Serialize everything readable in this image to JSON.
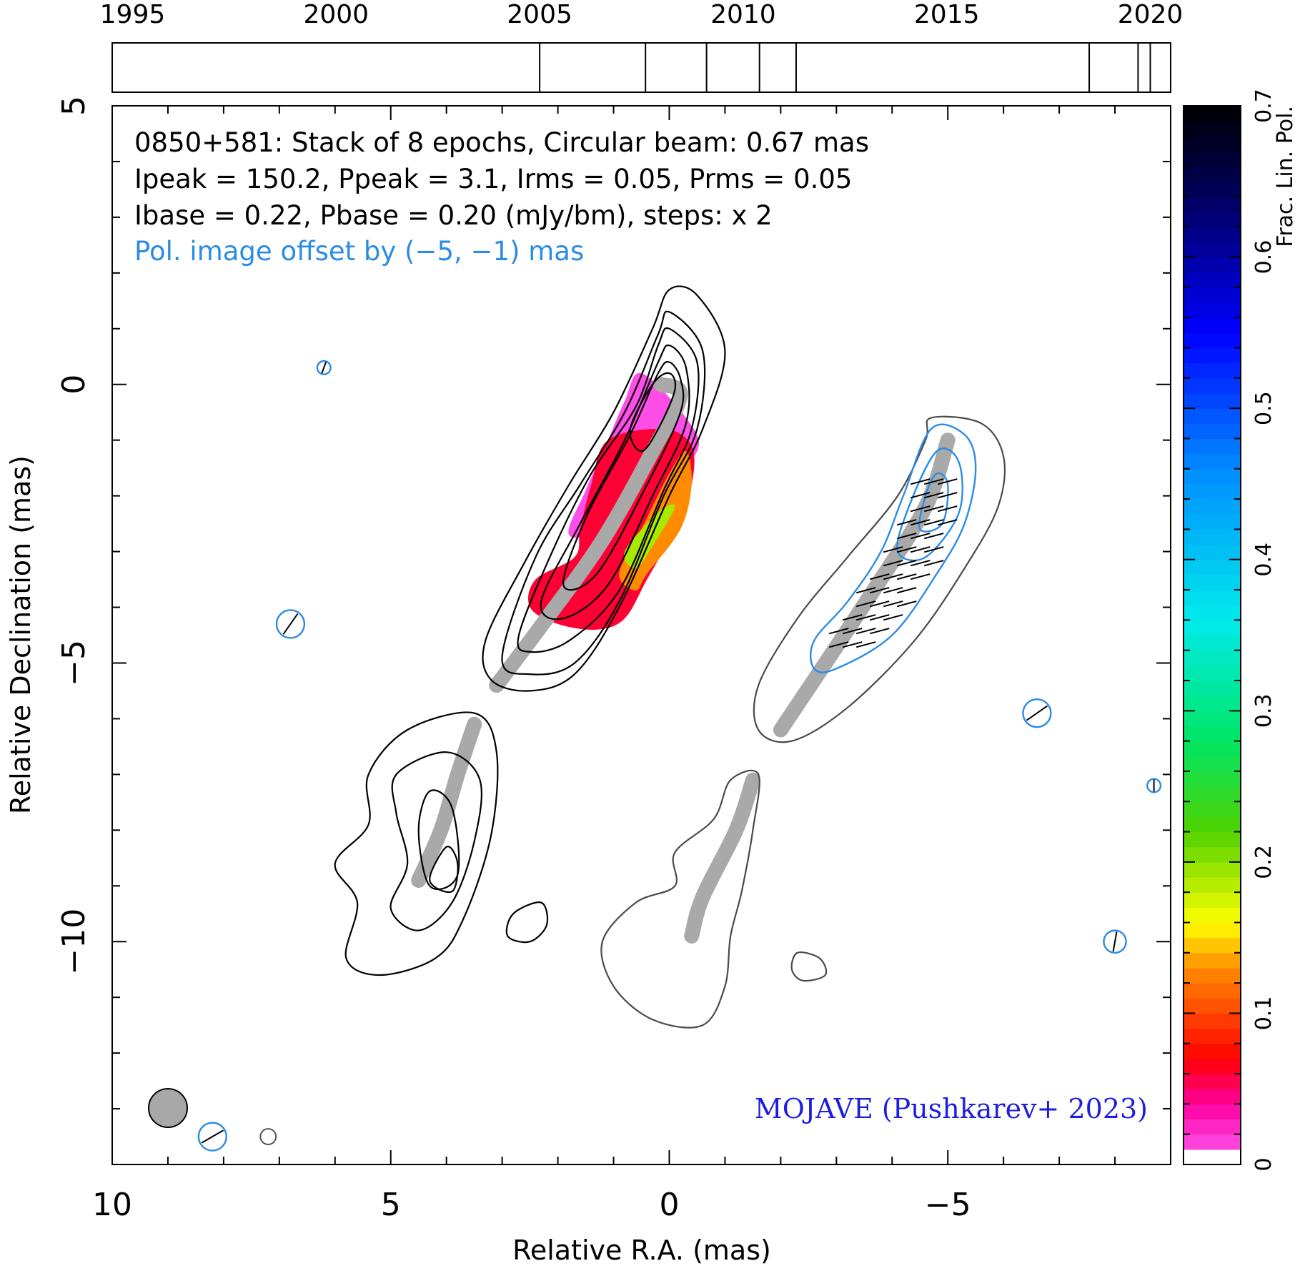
{
  "chart_data": {
    "type": "contour",
    "source": "0850+581",
    "header_lines": [
      "0850+581: Stack of 8 epochs, Circular beam: 0.67 mas",
      "Ipeak = 150.2, Ppeak = 3.1, Irms = 0.05, Prms = 0.05",
      "Ibase = 0.22, Pbase = 0.20 (mJy/bm), steps: x 2"
    ],
    "offset_note": "Pol. image offset by (−5, −1) mas",
    "credit": "MOJAVE (Pushkarev+ 2023)",
    "xlabel": "Relative R.A. (mas)",
    "ylabel": "Relative Declination (mas)",
    "xlim": [
      10,
      -9
    ],
    "ylim": [
      -14,
      5
    ],
    "x_ticks": [
      {
        "value": 10,
        "label": "10"
      },
      {
        "value": 5,
        "label": "5"
      },
      {
        "value": 0,
        "label": "0"
      },
      {
        "value": -5,
        "label": "−5"
      }
    ],
    "y_ticks": [
      {
        "value": 5,
        "label": "5"
      },
      {
        "value": 0,
        "label": "0"
      },
      {
        "value": -5,
        "label": "−5"
      },
      {
        "value": -10,
        "label": "−10"
      }
    ],
    "epoch_axis": {
      "range": [
        1994.5,
        2020.5
      ],
      "tick_labels": [
        {
          "year": 1995,
          "label": "1995"
        },
        {
          "year": 2000,
          "label": "2000"
        },
        {
          "year": 2005,
          "label": "2005"
        },
        {
          "year": 2010,
          "label": "2010"
        },
        {
          "year": 2015,
          "label": "2015"
        },
        {
          "year": 2020,
          "label": "2020"
        }
      ],
      "epochs": [
        2005.0,
        2007.6,
        2009.1,
        2010.4,
        2011.3,
        2018.5,
        2019.7,
        2020.0
      ]
    },
    "colorbar": {
      "label": "Frac. Lin. Pol.",
      "range": [
        0,
        0.7
      ],
      "ticks": [
        {
          "value": 0,
          "label": "0"
        },
        {
          "value": 0.1,
          "label": "0.1"
        },
        {
          "value": 0.2,
          "label": "0.2"
        },
        {
          "value": 0.3,
          "label": "0.3"
        },
        {
          "value": 0.4,
          "label": "0.4"
        },
        {
          "value": 0.5,
          "label": "0.5"
        },
        {
          "value": 0.6,
          "label": "0.6"
        },
        {
          "value": 0.7,
          "label": "0.7"
        }
      ]
    },
    "beam_fwhm_mas": 0.67,
    "ridgelines": [
      {
        "name": "core region",
        "points": [
          [
            0.15,
            0.0
          ],
          [
            -0.2,
            -0.2
          ],
          [
            0.3,
            -1.2
          ],
          [
            1.2,
            -2.8
          ],
          [
            2.2,
            -4.2
          ],
          [
            3.1,
            -5.4
          ]
        ]
      },
      {
        "name": "core region offset",
        "points": [
          [
            -5.0,
            -1.0
          ],
          [
            -4.6,
            -2.2
          ],
          [
            -3.6,
            -3.8
          ],
          [
            -2.0,
            -6.2
          ]
        ]
      },
      {
        "name": "outer jet",
        "points": [
          [
            3.5,
            -6.1
          ],
          [
            3.8,
            -7.0
          ],
          [
            4.1,
            -8.0
          ],
          [
            4.5,
            -8.9
          ]
        ]
      },
      {
        "name": "outer jet offset",
        "points": [
          [
            -1.5,
            -7.1
          ],
          [
            -1.2,
            -8.0
          ],
          [
            -0.6,
            -9.2
          ],
          [
            -0.4,
            -9.9
          ]
        ]
      }
    ],
    "fpol_patches": [
      {
        "fpol": 0.01,
        "points": [
          [
            0.5,
            0.2
          ],
          [
            -0.3,
            -0.6
          ],
          [
            -0.5,
            -1.2
          ],
          [
            0.3,
            -1.9
          ],
          [
            1.1,
            -2.6
          ],
          [
            1.8,
            -2.7
          ],
          [
            1.5,
            -1.9
          ],
          [
            1.1,
            -1.0
          ],
          [
            0.8,
            -0.3
          ]
        ]
      },
      {
        "fpol": 0.06,
        "points": [
          [
            1.1,
            -1.0
          ],
          [
            0.1,
            -0.8
          ],
          [
            -0.4,
            -1.1
          ],
          [
            -0.4,
            -1.8
          ],
          [
            -0.1,
            -2.6
          ],
          [
            0.4,
            -3.5
          ],
          [
            0.8,
            -4.2
          ],
          [
            1.3,
            -4.4
          ],
          [
            2.0,
            -4.3
          ],
          [
            2.5,
            -4.0
          ],
          [
            2.4,
            -3.5
          ],
          [
            1.7,
            -3.1
          ],
          [
            1.6,
            -2.6
          ],
          [
            1.4,
            -1.8
          ]
        ]
      },
      {
        "fpol": 0.13,
        "points": [
          [
            -0.3,
            -1.2
          ],
          [
            -0.4,
            -1.8
          ],
          [
            -0.2,
            -2.6
          ],
          [
            0.4,
            -3.4
          ],
          [
            0.6,
            -3.7
          ],
          [
            0.9,
            -3.4
          ],
          [
            0.5,
            -2.6
          ],
          [
            0.0,
            -1.6
          ]
        ]
      },
      {
        "fpol": 0.19,
        "points": [
          [
            -0.1,
            -2.2
          ],
          [
            0.3,
            -2.9
          ],
          [
            0.6,
            -3.3
          ],
          [
            0.8,
            -3.0
          ],
          [
            0.2,
            -2.3
          ]
        ]
      }
    ],
    "total_intensity_contours": [
      {
        "component": "core",
        "level": 1,
        "points": [
          [
            0.0,
            1.7
          ],
          [
            -0.5,
            1.6
          ],
          [
            -1.0,
            0.6
          ],
          [
            -0.6,
            -0.8
          ],
          [
            0.0,
            -2.0
          ],
          [
            0.9,
            -4.0
          ],
          [
            1.7,
            -5.2
          ],
          [
            2.5,
            -5.5
          ],
          [
            3.2,
            -5.3
          ],
          [
            3.3,
            -4.6
          ],
          [
            2.6,
            -3.2
          ],
          [
            1.8,
            -1.8
          ],
          [
            1.0,
            -0.5
          ],
          [
            0.3,
            1.0
          ]
        ]
      },
      {
        "component": "core",
        "level": 2,
        "points": [
          [
            0.0,
            1.3
          ],
          [
            -0.6,
            0.6
          ],
          [
            -0.5,
            -0.8
          ],
          [
            0.1,
            -2.0
          ],
          [
            0.9,
            -3.9
          ],
          [
            1.7,
            -5.0
          ],
          [
            2.5,
            -5.2
          ],
          [
            3.0,
            -4.9
          ],
          [
            2.4,
            -3.1
          ],
          [
            1.6,
            -1.8
          ],
          [
            0.8,
            -0.5
          ],
          [
            0.2,
            0.9
          ]
        ]
      },
      {
        "component": "core",
        "level": 3,
        "points": [
          [
            0.0,
            1.0
          ],
          [
            -0.5,
            0.4
          ],
          [
            -0.4,
            -0.8
          ],
          [
            0.1,
            -1.9
          ],
          [
            0.9,
            -3.7
          ],
          [
            1.8,
            -4.6
          ],
          [
            2.5,
            -4.8
          ],
          [
            2.7,
            -4.5
          ],
          [
            2.1,
            -3.0
          ],
          [
            1.4,
            -1.6
          ],
          [
            0.6,
            -0.4
          ],
          [
            0.2,
            0.7
          ]
        ]
      },
      {
        "component": "core",
        "level": 4,
        "points": [
          [
            0.0,
            0.7
          ],
          [
            -0.3,
            0.3
          ],
          [
            -0.3,
            -0.7
          ],
          [
            0.3,
            -2.0
          ],
          [
            1.1,
            -3.6
          ],
          [
            1.9,
            -4.2
          ],
          [
            2.3,
            -3.9
          ],
          [
            1.6,
            -2.5
          ],
          [
            0.8,
            -1.0
          ],
          [
            0.2,
            0.4
          ]
        ]
      },
      {
        "component": "core",
        "level": 5,
        "points": [
          [
            0.0,
            0.4
          ],
          [
            -0.2,
            0.1
          ],
          [
            -0.2,
            -0.5
          ],
          [
            0.4,
            -1.8
          ],
          [
            1.3,
            -3.4
          ],
          [
            1.9,
            -3.6
          ],
          [
            1.5,
            -2.4
          ],
          [
            0.7,
            -0.9
          ],
          [
            0.2,
            0.2
          ]
        ]
      },
      {
        "component": "core",
        "level": 6,
        "points": [
          [
            0.0,
            0.2
          ],
          [
            -0.1,
            -0.1
          ],
          [
            0.2,
            -0.8
          ],
          [
            0.5,
            -1.2
          ],
          [
            0.7,
            -0.8
          ],
          [
            0.3,
            0.0
          ]
        ]
      },
      {
        "component": "outer",
        "level": 1,
        "points": [
          [
            3.5,
            -5.9
          ],
          [
            4.7,
            -6.2
          ],
          [
            5.4,
            -7.0
          ],
          [
            5.4,
            -7.9
          ],
          [
            6.0,
            -8.6
          ],
          [
            5.6,
            -9.3
          ],
          [
            5.8,
            -10.3
          ],
          [
            5.2,
            -10.6
          ],
          [
            4.2,
            -10.3
          ],
          [
            3.7,
            -9.6
          ],
          [
            3.2,
            -8.1
          ],
          [
            3.1,
            -6.6
          ]
        ]
      },
      {
        "component": "outer",
        "level": 2,
        "points": [
          [
            4.0,
            -6.6
          ],
          [
            4.9,
            -7.0
          ],
          [
            4.9,
            -7.7
          ],
          [
            4.7,
            -8.6
          ],
          [
            5.0,
            -9.4
          ],
          [
            4.5,
            -9.8
          ],
          [
            3.9,
            -9.3
          ],
          [
            3.5,
            -8.2
          ],
          [
            3.4,
            -7.1
          ]
        ]
      },
      {
        "component": "outer",
        "level": 3,
        "points": [
          [
            4.3,
            -7.3
          ],
          [
            4.5,
            -8.0
          ],
          [
            4.3,
            -9.0
          ],
          [
            3.8,
            -8.8
          ],
          [
            3.9,
            -7.6
          ]
        ]
      },
      {
        "component": "outer",
        "level": 4,
        "points": [
          [
            4.0,
            -8.3
          ],
          [
            4.3,
            -8.9
          ],
          [
            3.9,
            -9.1
          ],
          [
            3.8,
            -8.6
          ]
        ]
      },
      {
        "component": "knot",
        "level": 1,
        "points": [
          [
            2.3,
            -9.3
          ],
          [
            2.8,
            -9.5
          ],
          [
            2.9,
            -9.9
          ],
          [
            2.5,
            -10.0
          ],
          [
            2.2,
            -9.7
          ]
        ]
      }
    ],
    "offset_intensity_contours": [
      {
        "component": "core offset",
        "points": [
          [
            -4.7,
            -0.6
          ],
          [
            -5.6,
            -0.7
          ],
          [
            -6.0,
            -1.3
          ],
          [
            -5.9,
            -2.2
          ],
          [
            -5.3,
            -3.3
          ],
          [
            -4.4,
            -4.6
          ],
          [
            -3.2,
            -5.8
          ],
          [
            -2.2,
            -6.4
          ],
          [
            -1.6,
            -6.2
          ],
          [
            -1.6,
            -5.4
          ],
          [
            -2.3,
            -4.2
          ],
          [
            -3.2,
            -3.1
          ],
          [
            -4.1,
            -2.0
          ],
          [
            -4.6,
            -1.0
          ]
        ]
      },
      {
        "component": "outer offset",
        "points": [
          [
            -1.6,
            -7.0
          ],
          [
            -1.1,
            -7.1
          ],
          [
            -0.8,
            -7.8
          ],
          [
            -0.1,
            -8.4
          ],
          [
            -0.1,
            -9.0
          ],
          [
            0.6,
            -9.3
          ],
          [
            1.2,
            -10.0
          ],
          [
            1.0,
            -10.8
          ],
          [
            0.3,
            -11.4
          ],
          [
            -0.6,
            -11.5
          ],
          [
            -1.0,
            -10.8
          ],
          [
            -1.1,
            -9.9
          ],
          [
            -1.3,
            -9.1
          ],
          [
            -1.5,
            -8.0
          ]
        ]
      },
      {
        "component": "knot offset",
        "points": [
          [
            -2.3,
            -10.2
          ],
          [
            -2.7,
            -10.3
          ],
          [
            -2.8,
            -10.6
          ],
          [
            -2.4,
            -10.7
          ],
          [
            -2.2,
            -10.5
          ]
        ]
      }
    ],
    "polarized_intensity_contours": [
      {
        "level": 1,
        "points": [
          [
            -4.7,
            -0.8
          ],
          [
            -5.3,
            -0.9
          ],
          [
            -5.5,
            -1.5
          ],
          [
            -5.3,
            -2.5
          ],
          [
            -4.8,
            -3.4
          ],
          [
            -4.0,
            -4.5
          ],
          [
            -3.0,
            -5.1
          ],
          [
            -2.6,
            -5.1
          ],
          [
            -2.6,
            -4.6
          ],
          [
            -3.2,
            -3.9
          ],
          [
            -3.8,
            -3.0
          ],
          [
            -4.2,
            -2.0
          ]
        ]
      },
      {
        "level": 2,
        "points": [
          [
            -4.8,
            -1.2
          ],
          [
            -5.2,
            -1.4
          ],
          [
            -5.2,
            -2.3
          ],
          [
            -4.6,
            -3.1
          ],
          [
            -4.1,
            -3.0
          ],
          [
            -4.3,
            -2.2
          ]
        ]
      },
      {
        "level": 3,
        "points": [
          [
            -4.8,
            -1.6
          ],
          [
            -5.0,
            -1.8
          ],
          [
            -4.9,
            -2.5
          ],
          [
            -4.5,
            -2.6
          ],
          [
            -4.6,
            -2.0
          ]
        ]
      }
    ],
    "evpa_ticks": {
      "region": [
        [
          -4.6,
          -1.5
        ],
        [
          -5.2,
          -1.8
        ],
        [
          -4.9,
          -3.1
        ],
        [
          -4.2,
          -4.1
        ],
        [
          -3.4,
          -4.8
        ],
        [
          -2.8,
          -4.6
        ],
        [
          -3.6,
          -3.6
        ],
        [
          -4.2,
          -2.5
        ]
      ],
      "angle_deg": 15
    },
    "isolated_pol_contours": [
      {
        "x": 6.2,
        "y": 0.3,
        "r": 0.12,
        "evpa_deg": 20
      },
      {
        "x": 6.8,
        "y": -4.3,
        "r": 0.25,
        "evpa_deg": 35
      },
      {
        "x": -6.6,
        "y": -5.9,
        "r": 0.25,
        "evpa_deg": 55
      },
      {
        "x": -8.7,
        "y": -7.2,
        "r": 0.12,
        "evpa_deg": 0
      },
      {
        "x": -8.0,
        "y": -10.0,
        "r": 0.2,
        "evpa_deg": 10
      },
      {
        "x": 8.2,
        "y": -13.5,
        "r": 0.25,
        "evpa_deg": 60
      }
    ],
    "isolated_intensity_blobs": [
      {
        "x": 7.2,
        "y": -13.5,
        "r": 0.14
      }
    ]
  }
}
